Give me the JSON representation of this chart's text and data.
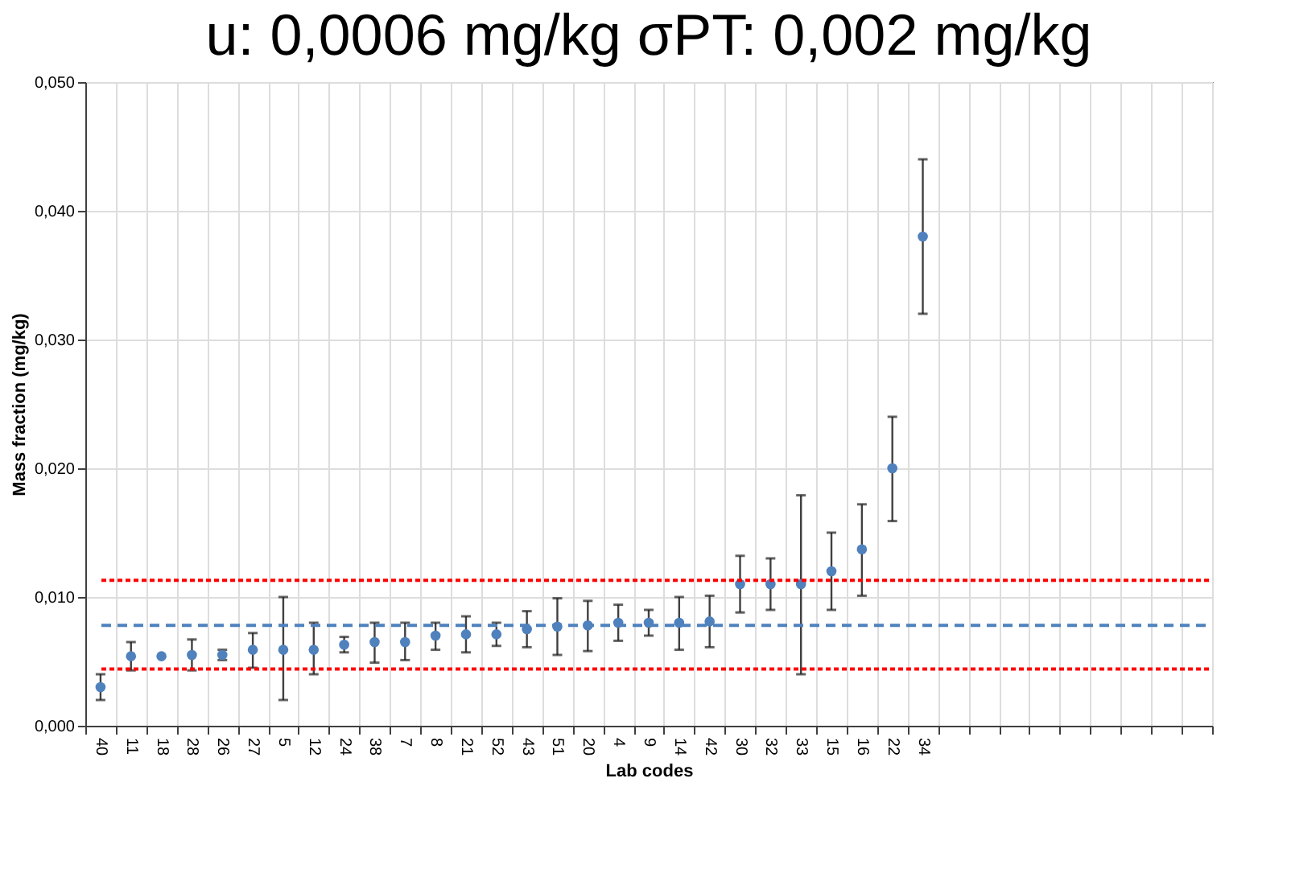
{
  "chart_data": {
    "type": "scatter",
    "title": "u: 0,0006 mg/kg  σPT: 0,002 mg/kg",
    "xlabel": "Lab codes",
    "ylabel": "Mass fraction (mg/kg)",
    "categories": [
      "40",
      "11",
      "18",
      "28",
      "26",
      "27",
      "5",
      "12",
      "24",
      "38",
      "7",
      "8",
      "21",
      "52",
      "43",
      "51",
      "20",
      "4",
      "9",
      "14",
      "42",
      "30",
      "32",
      "33",
      "15",
      "16",
      "22",
      "34",
      null,
      null,
      null,
      null,
      null,
      null,
      null,
      null,
      null
    ],
    "series": [
      {
        "color": "#4f81bd",
        "values": [
          0.003,
          0.0054,
          0.0054,
          0.0055,
          0.0055,
          0.0059,
          0.0059,
          0.0059,
          0.0063,
          0.0065,
          0.0065,
          0.007,
          0.0071,
          0.0071,
          0.0075,
          0.0077,
          0.0078,
          0.008,
          0.008,
          0.008,
          0.0081,
          0.011,
          0.011,
          0.011,
          0.012,
          0.0137,
          0.02,
          0.038,
          null,
          null,
          null,
          null,
          null,
          null,
          null,
          null,
          null
        ],
        "errors": [
          [
            0.002,
            0.004
          ],
          [
            0.0043,
            0.0065
          ],
          null,
          [
            0.0043,
            0.0067
          ],
          [
            0.0051,
            0.0059
          ],
          [
            0.0045,
            0.0072
          ],
          [
            0.002,
            0.01
          ],
          [
            0.004,
            0.008
          ],
          [
            0.0057,
            0.0069
          ],
          [
            0.0049,
            0.008
          ],
          [
            0.0051,
            0.008
          ],
          [
            0.0059,
            0.008
          ],
          [
            0.0057,
            0.0085
          ],
          [
            0.0062,
            0.008
          ],
          [
            0.0061,
            0.0089
          ],
          [
            0.0055,
            0.0099
          ],
          [
            0.0058,
            0.0097
          ],
          [
            0.0066,
            0.0094
          ],
          [
            0.007,
            0.009
          ],
          [
            0.0059,
            0.01
          ],
          [
            0.0061,
            0.0101
          ],
          [
            0.0088,
            0.0132
          ],
          [
            0.009,
            0.013
          ],
          [
            0.004,
            0.0179
          ],
          [
            0.009,
            0.015
          ],
          [
            0.0101,
            0.0172
          ],
          [
            0.0159,
            0.024
          ],
          [
            0.032,
            0.044
          ],
          null,
          null,
          null,
          null,
          null,
          null,
          null,
          null,
          null
        ]
      }
    ],
    "ylim": [
      0,
      0.05
    ],
    "yticks": [
      {
        "value": 0,
        "label": "0,000"
      },
      {
        "value": 0.01,
        "label": "0,010"
      },
      {
        "value": 0.02,
        "label": "0,020"
      },
      {
        "value": 0.03,
        "label": "0,030"
      },
      {
        "value": 0.04,
        "label": "0,040"
      },
      {
        "value": 0.05,
        "label": "0,050"
      }
    ],
    "grid": true,
    "marker": "circle",
    "legend": false,
    "ref_lines": [
      {
        "axis": "y",
        "value": 0.0113,
        "color": "#ff0000",
        "line_style": "dotted"
      },
      {
        "axis": "y",
        "value": 0.0078,
        "color": "#4f81bd",
        "line_style": "dashed"
      },
      {
        "axis": "y",
        "value": 0.0044,
        "color": "#ff0000",
        "line_style": "dotted"
      }
    ]
  }
}
